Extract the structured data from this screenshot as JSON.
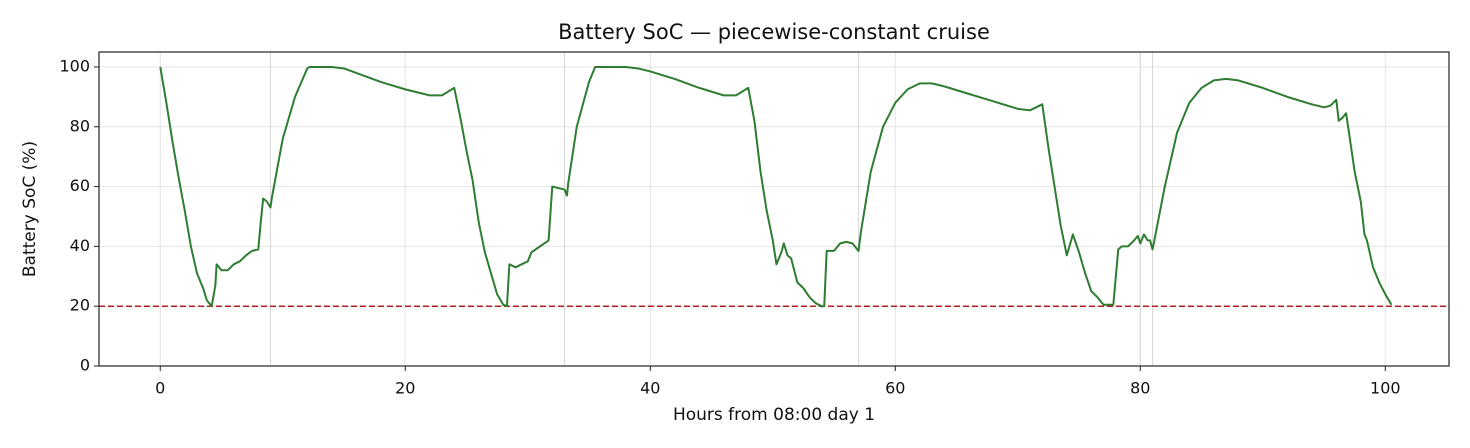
{
  "chart_data": {
    "type": "line",
    "title": "Battery SoC — piecewise-constant cruise",
    "xlabel": "Hours from 08:00 day 1",
    "ylabel": "Battery SoC (%)",
    "xlim": [
      -5,
      105.2
    ],
    "ylim": [
      0,
      105
    ],
    "xticks": [
      0,
      20,
      40,
      60,
      80,
      100
    ],
    "yticks": [
      0,
      20,
      40,
      60,
      80,
      100
    ],
    "grid": true,
    "vlines": [
      9,
      33,
      57,
      80,
      81
    ],
    "hline": {
      "value": 20,
      "color": "#b22222"
    },
    "series": [
      {
        "color": "#2e7d32",
        "x": [
          0,
          0.5,
          1,
          1.5,
          2,
          2.5,
          3,
          3.5,
          3.8,
          4,
          4.2,
          4.5,
          4.6,
          5,
          5.5,
          6,
          6.5,
          7,
          7.5,
          8,
          8.2,
          8.4,
          8.7,
          9,
          9.1,
          10,
          11,
          12,
          12.2,
          14,
          15,
          16,
          18,
          20,
          22,
          23,
          24,
          24.5,
          25,
          25.5,
          26,
          26.5,
          27,
          27.5,
          28,
          28.3,
          28.5,
          29,
          29.5,
          30,
          30.3,
          31,
          31.7,
          32,
          32.5,
          33,
          33.2,
          33.3,
          34,
          35,
          35.5,
          38,
          39,
          40,
          42,
          44,
          46,
          47,
          48,
          48.5,
          49,
          49.5,
          50,
          50.3,
          50.7,
          50.9,
          51.2,
          51.5,
          52,
          52.5,
          53,
          53.5,
          54,
          54.2,
          54.4,
          55,
          55.5,
          56,
          56.5,
          57,
          57.2,
          58,
          59,
          60,
          61,
          62,
          63,
          64,
          66,
          68,
          70,
          71,
          72,
          72.5,
          73,
          73.5,
          74,
          74.5,
          75,
          75.5,
          76,
          76.5,
          77,
          77.5,
          77.8,
          78.2,
          78.5,
          79,
          79.5,
          79.8,
          80,
          80.3,
          80.6,
          80.8,
          81,
          81.1,
          82,
          83,
          84,
          85,
          86,
          87,
          88,
          90,
          92,
          94,
          95,
          95.5,
          96,
          96.2,
          96.5,
          96.8,
          97,
          97.5,
          98,
          98.3,
          98.5,
          99,
          99.5,
          100,
          100.5
        ],
        "values": [
          100,
          88,
          75,
          63,
          52,
          40,
          31,
          26,
          22,
          21,
          20,
          27,
          34,
          32,
          32,
          34,
          35,
          37,
          38.5,
          39,
          48,
          56,
          55,
          53,
          56,
          76,
          90,
          99.5,
          100,
          100,
          99.5,
          98,
          95,
          92.5,
          90.5,
          90.5,
          93,
          83,
          72,
          62,
          48,
          38,
          31,
          24,
          20.5,
          20,
          34,
          33,
          34,
          35,
          38,
          40,
          42,
          60,
          59.5,
          59,
          57,
          61,
          80,
          95,
          100,
          100,
          99.5,
          98.5,
          96,
          93,
          90.5,
          90.5,
          93,
          82,
          65,
          52,
          42,
          34,
          38,
          41,
          37,
          36,
          28,
          26,
          23,
          21,
          20,
          20,
          38.5,
          38.5,
          41,
          41.5,
          41,
          38.5,
          45,
          65,
          80,
          88,
          92.5,
          94.5,
          94.5,
          93.5,
          91,
          88.5,
          86,
          85.5,
          87.5,
          73,
          60,
          47,
          37,
          44,
          38,
          31,
          25,
          23,
          20.5,
          20.5,
          20.5,
          39,
          40,
          40,
          42,
          43.5,
          41,
          44,
          42,
          42,
          39,
          41,
          60,
          78,
          88,
          93,
          95.5,
          96,
          95.5,
          93,
          90,
          87.5,
          86.5,
          87,
          89,
          82,
          83,
          84.5,
          79,
          65,
          55,
          44,
          42,
          33,
          28,
          24,
          20.5
        ]
      }
    ]
  }
}
